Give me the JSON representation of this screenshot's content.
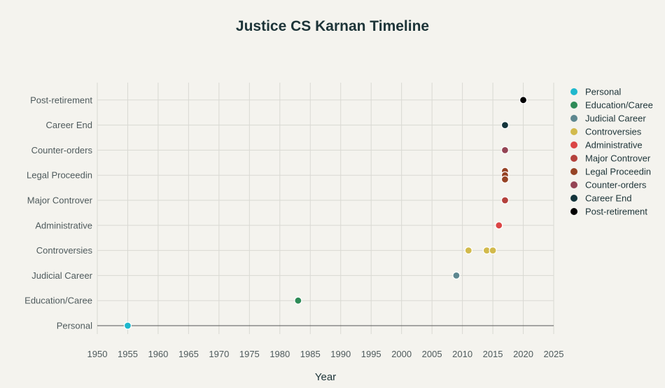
{
  "chart_data": {
    "type": "scatter",
    "title": "Justice CS Karnan Timeline",
    "xlabel": "Year",
    "ylabel": "",
    "xlim": [
      1950,
      2025
    ],
    "x_ticks": [
      1950,
      1955,
      1960,
      1965,
      1970,
      1975,
      1980,
      1985,
      1990,
      1995,
      2000,
      2005,
      2010,
      2015,
      2020,
      2025
    ],
    "y_categories": [
      "Personal",
      "Education/Caree",
      "Judicial Career",
      "Controversies",
      "Administrative",
      "Major Controver",
      "Legal Proceedin",
      "Counter-orders",
      "Career End",
      "Post-retirement"
    ],
    "grid": true,
    "legend_position": "right",
    "series": [
      {
        "name": "Personal",
        "color": "#1fb8cd",
        "points": [
          {
            "x": 1955,
            "y": "Personal"
          }
        ]
      },
      {
        "name": "Education/Caree",
        "color": "#2e8b57",
        "points": [
          {
            "x": 1983,
            "y": "Education/Caree"
          }
        ]
      },
      {
        "name": "Judicial Career",
        "color": "#5d878f",
        "points": [
          {
            "x": 2009,
            "y": "Judicial Career"
          }
        ]
      },
      {
        "name": "Controversies",
        "color": "#d2ba4c",
        "points": [
          {
            "x": 2011,
            "y": "Controversies"
          },
          {
            "x": 2014,
            "y": "Controversies"
          },
          {
            "x": 2015,
            "y": "Controversies"
          }
        ]
      },
      {
        "name": "Administrative",
        "color": "#db4545",
        "points": [
          {
            "x": 2016,
            "y": "Administrative"
          }
        ]
      },
      {
        "name": "Major Controver",
        "color": "#b4413c",
        "points": [
          {
            "x": 2017,
            "y": "Major Controver"
          }
        ]
      },
      {
        "name": "Legal Proceedin",
        "color": "#964325",
        "points": [
          {
            "x": 2017,
            "y": "Legal Proceedin"
          },
          {
            "x": 2017,
            "y": "Legal Proceedin"
          },
          {
            "x": 2017,
            "y": "Legal Proceedin"
          }
        ]
      },
      {
        "name": "Counter-orders",
        "color": "#944454",
        "points": [
          {
            "x": 2017,
            "y": "Counter-orders"
          }
        ]
      },
      {
        "name": "Career End",
        "color": "#13343b",
        "points": [
          {
            "x": 2017,
            "y": "Career End"
          }
        ]
      },
      {
        "name": "Post-retirement",
        "color": "#000000",
        "points": [
          {
            "x": 2020,
            "y": "Post-retirement"
          }
        ]
      }
    ]
  }
}
